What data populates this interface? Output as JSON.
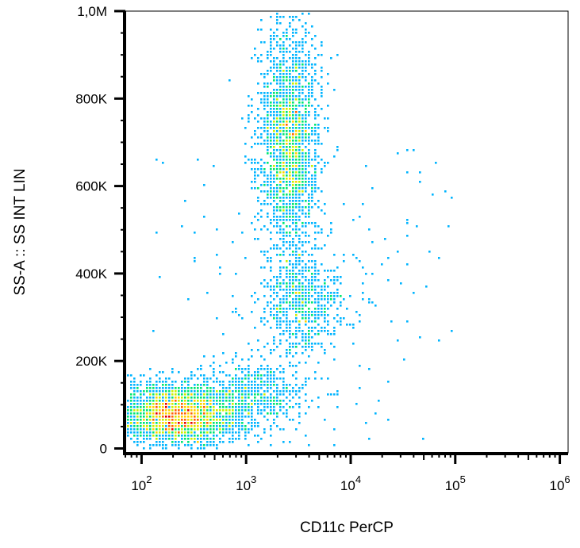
{
  "chart_data": {
    "type": "scatter",
    "title": "",
    "xlabel": "CD11c PerCP",
    "ylabel": "SS-A :: SS INT LIN",
    "x_scale": "log",
    "y_scale": "linear",
    "xlim": [
      70,
      1200000
    ],
    "ylim": [
      -10000,
      1000000
    ],
    "x_ticks": [
      {
        "value": 100,
        "base": "10",
        "exp": "2"
      },
      {
        "value": 1000,
        "base": "10",
        "exp": "3"
      },
      {
        "value": 10000,
        "base": "10",
        "exp": "4"
      },
      {
        "value": 100000,
        "base": "10",
        "exp": "5"
      },
      {
        "value": 1000000,
        "base": "10",
        "exp": "6"
      }
    ],
    "y_ticks": [
      {
        "value": 0,
        "label": "0"
      },
      {
        "value": 200000,
        "label": "200K"
      },
      {
        "value": 400000,
        "label": "400K"
      },
      {
        "value": 600000,
        "label": "600K"
      },
      {
        "value": 800000,
        "label": "800K"
      },
      {
        "value": 1000000,
        "label": "1,0M"
      }
    ],
    "color_scale": [
      "#0000ff",
      "#00b4ff",
      "#00e673",
      "#c8f000",
      "#ffd200",
      "#ff6400",
      "#e60000"
    ],
    "grid": false,
    "legend": "none",
    "populations": [
      {
        "x_center": 220,
        "y_center": 75000,
        "x_spread_log": 0.28,
        "y_spread": 35000,
        "density": "high"
      },
      {
        "x_center": 2600,
        "y_center": 700000,
        "x_spread_log": 0.14,
        "y_spread": 130000,
        "density": "medium"
      },
      {
        "x_center": 3500,
        "y_center": 330000,
        "x_spread_log": 0.2,
        "y_spread": 60000,
        "density": "low"
      },
      {
        "x_center": 1000,
        "y_center": 120000,
        "x_spread_log": 0.3,
        "y_spread": 40000,
        "density": "low"
      }
    ]
  }
}
